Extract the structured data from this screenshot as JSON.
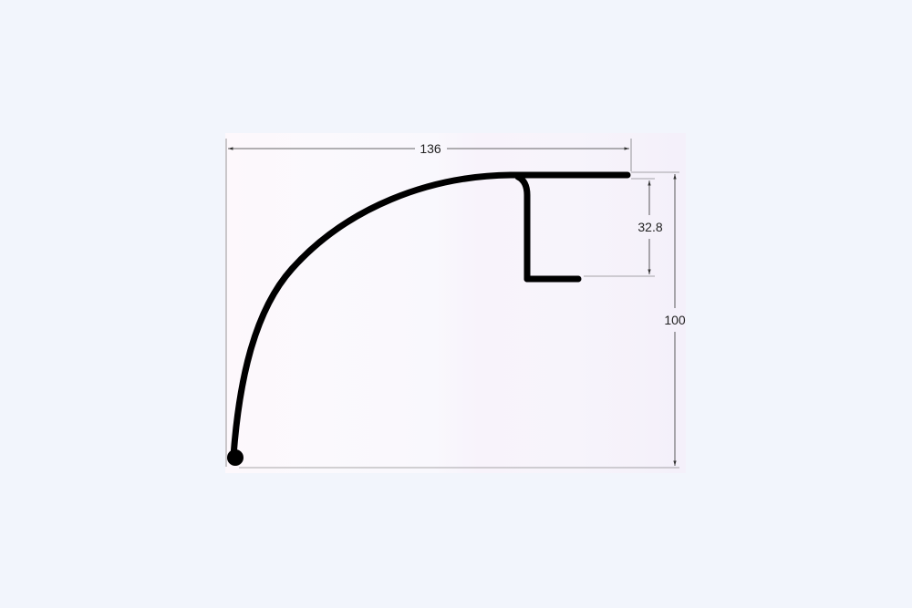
{
  "diagram": {
    "dimensions": {
      "width": "136",
      "inner_height": "32.8",
      "total_height": "100"
    },
    "colors": {
      "page_background": "#f2f5fc",
      "drawing_background": "#fbf8fd",
      "profile": "#000000",
      "dimension_line": "#333333"
    }
  }
}
